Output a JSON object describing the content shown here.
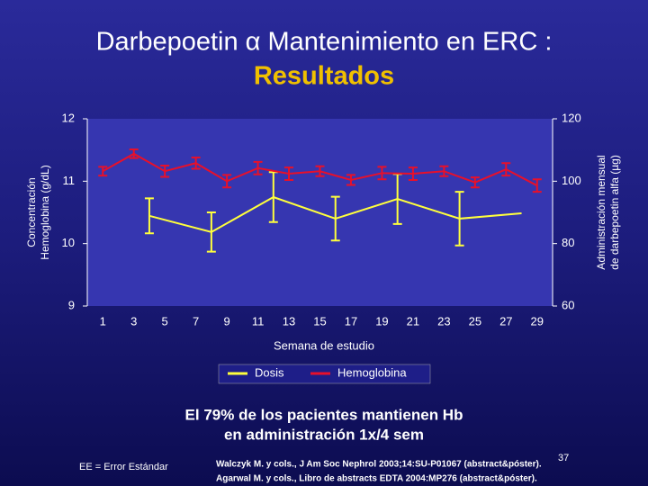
{
  "chart_data": {
    "type": "line",
    "title": "Darbepoetin α  Mantenimiento en  ERC :",
    "subtitle": "Resultados",
    "xlabel": "Semana de estudio",
    "ylabel": [
      "Concentración",
      "Hemoglobina (g/dL)"
    ],
    "y2label": [
      "Administración mensual",
      "de  darbepoetin alfa (µg)"
    ],
    "xlim": [
      0,
      30
    ],
    "xticks": [
      1,
      3,
      5,
      7,
      9,
      11,
      13,
      15,
      17,
      19,
      21,
      23,
      25,
      27,
      29
    ],
    "ylim": [
      9,
      12
    ],
    "yticks": [
      9,
      10,
      11,
      12
    ],
    "y2lim": [
      60,
      120
    ],
    "y2ticks": [
      60,
      80,
      100,
      120
    ],
    "series": [
      {
        "name": "Dosis",
        "color": "#ffff3c",
        "axis": "y2",
        "x": [
          4,
          8,
          12,
          16,
          20,
          24,
          28
        ],
        "values": [
          88.9,
          83.7,
          94.9,
          88.0,
          94.3,
          88.0,
          89.7
        ],
        "errors": [
          5.6,
          6.3,
          8,
          7,
          8,
          8.6,
          null
        ]
      },
      {
        "name": "Hemoglobina",
        "color": "#e8102a",
        "x": [
          1,
          3,
          5,
          7,
          9,
          11,
          13,
          15,
          17,
          19,
          21,
          23,
          25,
          27,
          29
        ],
        "values": [
          11.16,
          11.44,
          11.16,
          11.29,
          11.0,
          11.21,
          11.12,
          11.16,
          11.02,
          11.13,
          11.12,
          11.16,
          10.98,
          11.19,
          10.93
        ],
        "errors": [
          0.07,
          0.07,
          0.09,
          0.09,
          0.1,
          0.1,
          0.1,
          0.08,
          0.08,
          0.1,
          0.1,
          0.08,
          0.08,
          0.1,
          0.1
        ]
      }
    ],
    "legend": "bottom",
    "annotation": [
      "El 79% de los pacientes mantienen Hb",
      "en administración 1x/4 sem"
    ],
    "footnote": "EE = Error Estándar",
    "references": [
      "Walczyk M. y cols., J Am Soc Nephrol 2003;14:SU-P01067 (abstract&póster).",
      "Agarwal M. y cols.,  Libro de abstracts EDTA 2004:MP276 (abstract&póster)."
    ],
    "page_number": "37"
  }
}
